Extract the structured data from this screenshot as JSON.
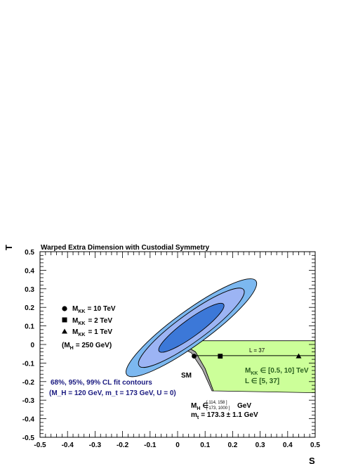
{
  "chart_data": {
    "type": "scatter",
    "title": "Warped Extra Dimension with Custodial Symmetry",
    "xlabel": "S",
    "ylabel": "T",
    "xlim": [
      -0.5,
      0.5
    ],
    "ylim": [
      -0.5,
      0.5
    ],
    "x_ticks": [
      "-0.5",
      "-0.4",
      "-0.3",
      "-0.2",
      "-0.1",
      "0",
      "0.1",
      "0.2",
      "0.3",
      "0.4",
      "0.5"
    ],
    "y_ticks": [
      "-0.5",
      "-0.4",
      "-0.3",
      "-0.2",
      "-0.1",
      "0",
      "0.1",
      "0.2",
      "0.3",
      "0.4",
      "0.5"
    ],
    "contours": {
      "label": "68%, 95%, 99% CL fit contours",
      "condition": "(M_H = 120 GeV, m_t = 173 GeV, U = 0)",
      "center": [
        0.05,
        0.09
      ],
      "levels": [
        {
          "cl": "99%",
          "color": "#7cb8f0",
          "semi_axes": [
            0.29,
            0.062
          ],
          "angle_deg": 36
        },
        {
          "cl": "95%",
          "color": "#9cb4f4",
          "semi_axes": [
            0.235,
            0.05
          ],
          "angle_deg": 36
        },
        {
          "cl": "68%",
          "color": "#3c78d8",
          "semi_axes": [
            0.145,
            0.031
          ],
          "angle_deg": 36
        }
      ]
    },
    "sm_region": {
      "label": "SM",
      "color": "#a9a9a9",
      "outline": [
        [
          0.0,
          0.02
        ],
        [
          0.02,
          0.0
        ],
        [
          0.065,
          -0.04
        ],
        [
          0.1,
          -0.13
        ],
        [
          0.13,
          -0.25
        ],
        [
          0.125,
          -0.25
        ],
        [
          0.09,
          -0.135
        ],
        [
          0.05,
          -0.045
        ],
        [
          0.0,
          -0.01
        ]
      ],
      "mh_text": "M_H ∈ [114, 158] ∪ [173, 1000] GeV",
      "mh_prefix": "M",
      "mh_sub": "H",
      "mh_in": "∈",
      "mh_range_top": "[ 114, 158 ]",
      "mh_range_bot": "[ 173, 1000 ]",
      "mh_unit": "GeV",
      "mt_prefix": "m",
      "mt_sub": "t",
      "mt_value": "= 173.3 ± 1.1 GeV"
    },
    "rs_region": {
      "color": "#ccff99",
      "outline": [
        [
          0.0,
          0.02
        ],
        [
          0.5,
          0.02
        ],
        [
          0.5,
          -0.26
        ],
        [
          0.13,
          -0.25
        ],
        [
          0.1,
          -0.13
        ],
        [
          0.065,
          -0.04
        ],
        [
          0.02,
          0.0
        ],
        [
          0.0,
          0.0
        ]
      ],
      "mkk_text": "M_KK ∈ [0.5, 10] TeV",
      "mkk_prefix": "M",
      "mkk_sub": "KK",
      "mkk_range": "∈ [0.5, 10] TeV",
      "l_text": "L ∈ [5, 37]"
    },
    "l_line": {
      "label": "L = 37",
      "y": -0.06,
      "x": [
        0.06,
        0.5
      ]
    },
    "points": [
      {
        "label": "M_KK = 10 TeV",
        "marker": "circle",
        "x": 0.06,
        "y": -0.063
      },
      {
        "label": "M_KK = 2 TeV",
        "marker": "square",
        "x": 0.155,
        "y": -0.063
      },
      {
        "label": "M_KK = 1 TeV",
        "marker": "triangle",
        "x": 0.44,
        "y": -0.063
      }
    ],
    "legend": {
      "entries": [
        {
          "marker": "circle",
          "prefix": "M",
          "sub": "KK",
          "value": "= 10 TeV"
        },
        {
          "marker": "square",
          "prefix": "M",
          "sub": "KK",
          "value": "= 2 TeV"
        },
        {
          "marker": "triangle",
          "prefix": "M",
          "sub": "KK",
          "value": "= 1 TeV"
        }
      ],
      "note_prefix": "(M",
      "note_sub": "H",
      "note_value": "= 250 GeV)"
    }
  }
}
